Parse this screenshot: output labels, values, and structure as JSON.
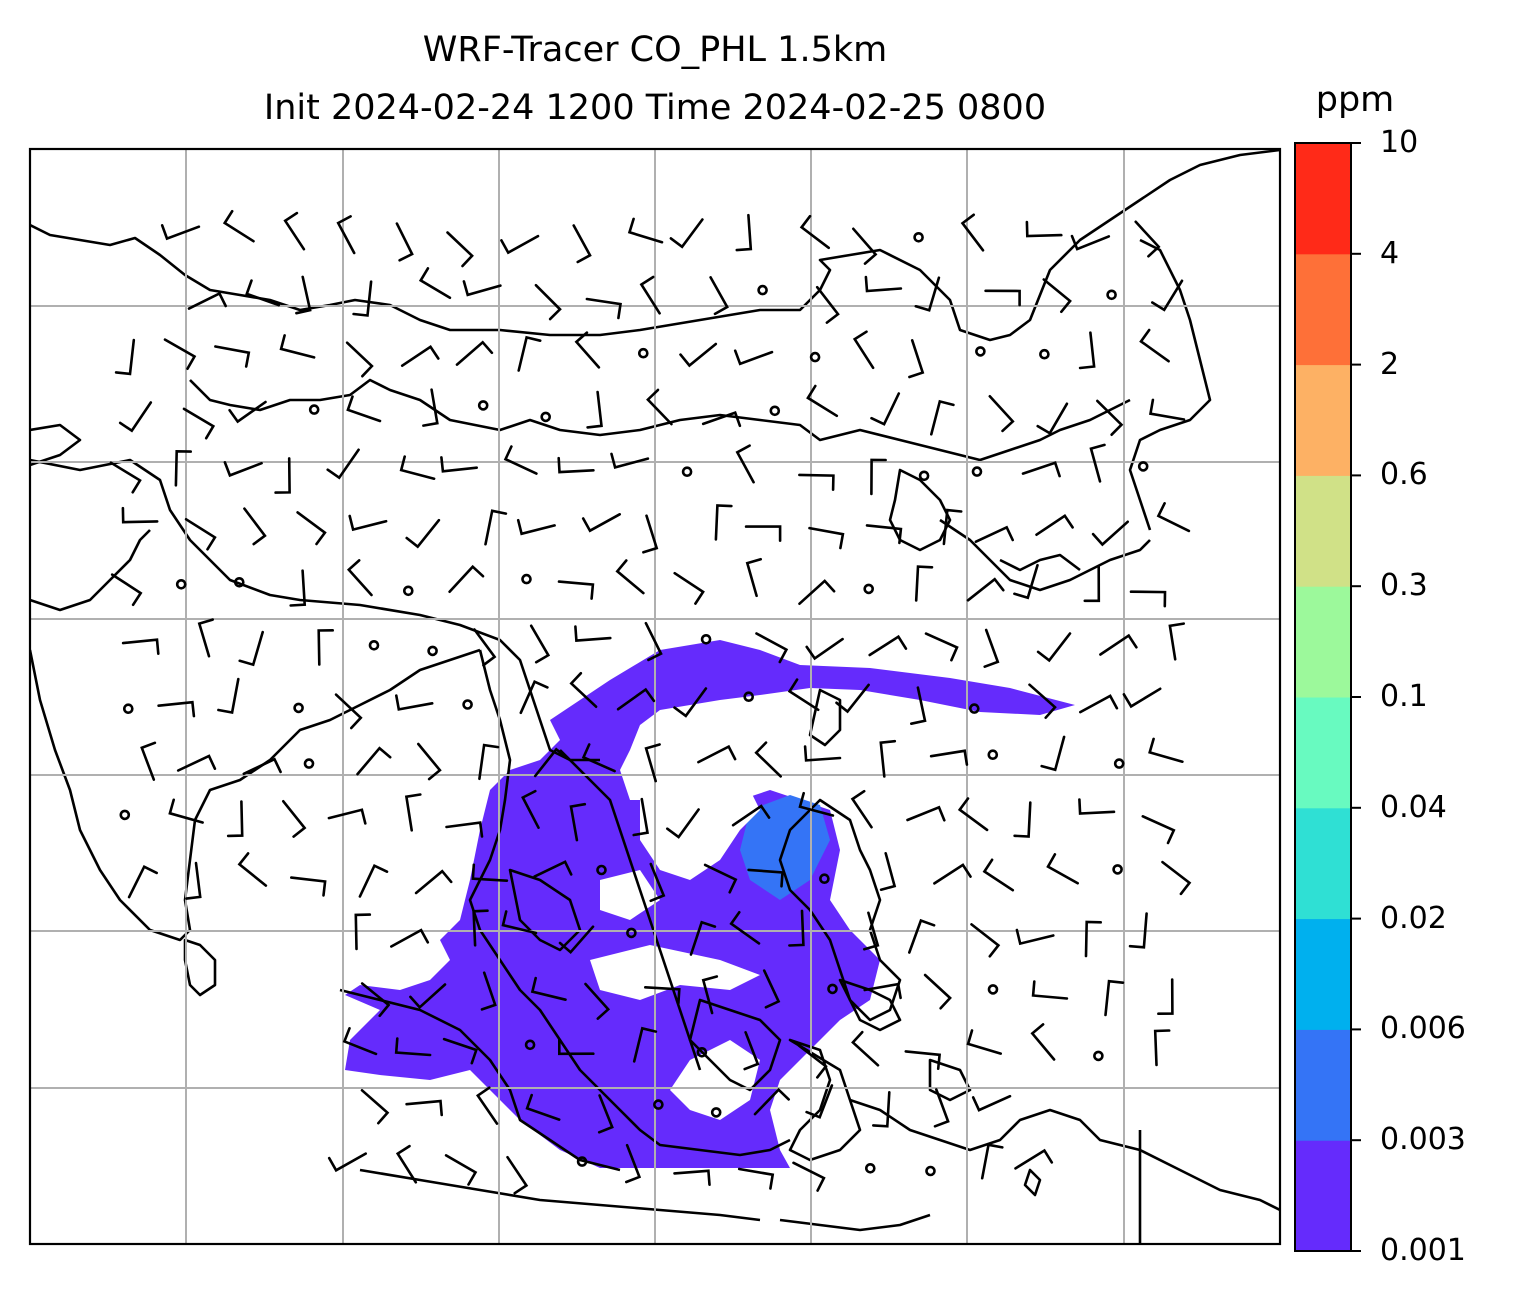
{
  "title": {
    "line1": "WRF-Tracer CO_PHL 1.5km",
    "line2": "Init 2024-02-24 1200 Time 2024-02-25 0800"
  },
  "colorbar": {
    "unit": "ppm",
    "levels": [
      "0.001",
      "0.003",
      "0.006",
      "0.02",
      "0.04",
      "0.1",
      "0.3",
      "0.6",
      "2",
      "4",
      "10"
    ],
    "colors": [
      "#652bfc",
      "#3474f6",
      "#00b0ee",
      "#2fe0d4",
      "#68fac0",
      "#9cf99b",
      "#d0e187",
      "#fdb164",
      "#fe7038",
      "#ff2a18"
    ]
  },
  "plume_color": "#652bfc"
}
